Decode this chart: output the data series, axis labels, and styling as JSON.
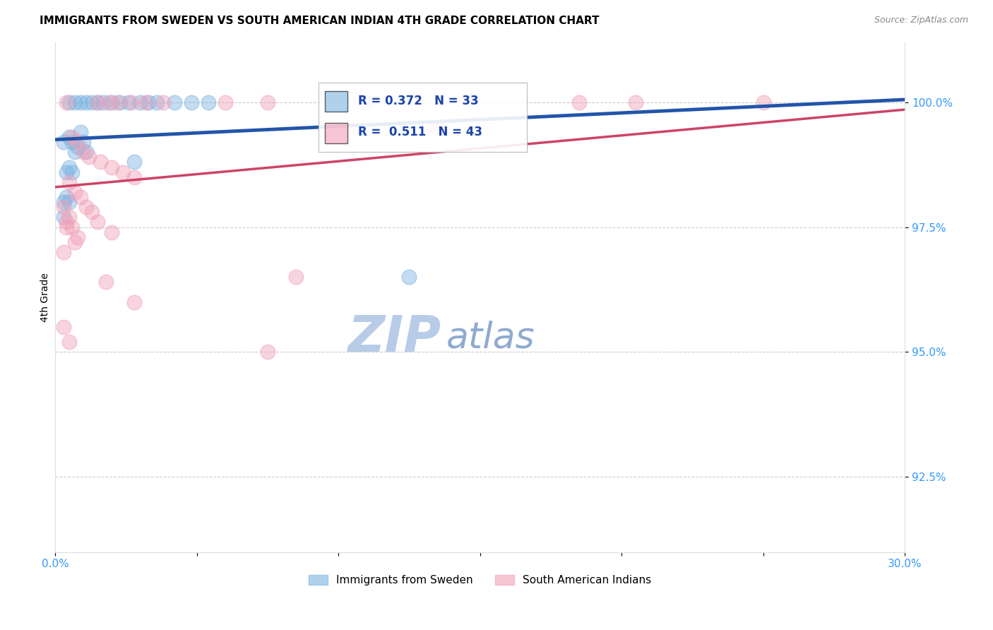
{
  "title": "IMMIGRANTS FROM SWEDEN VS SOUTH AMERICAN INDIAN 4TH GRADE CORRELATION CHART",
  "source": "Source: ZipAtlas.com",
  "ylabel": "4th Grade",
  "xlim": [
    0.0,
    30.0
  ],
  "ylim": [
    91.0,
    101.2
  ],
  "yticks": [
    92.5,
    95.0,
    97.5,
    100.0
  ],
  "ytick_labels": [
    "92.5%",
    "95.0%",
    "97.5%",
    "100.0%"
  ],
  "xticks": [
    0.0,
    5.0,
    10.0,
    15.0,
    20.0,
    25.0,
    30.0
  ],
  "xtick_labels": [
    "0.0%",
    "",
    "",
    "",
    "",
    "",
    "30.0%"
  ],
  "watermark_zip": "ZIP",
  "watermark_atlas": "atlas",
  "blue_scatter": [
    [
      0.5,
      100.0
    ],
    [
      0.7,
      100.0
    ],
    [
      0.9,
      100.0
    ],
    [
      1.1,
      100.0
    ],
    [
      1.3,
      100.0
    ],
    [
      1.5,
      100.0
    ],
    [
      1.7,
      100.0
    ],
    [
      2.0,
      100.0
    ],
    [
      2.3,
      100.0
    ],
    [
      2.6,
      100.0
    ],
    [
      3.0,
      100.0
    ],
    [
      3.3,
      100.0
    ],
    [
      3.6,
      100.0
    ],
    [
      4.2,
      100.0
    ],
    [
      4.8,
      100.0
    ],
    [
      5.4,
      100.0
    ],
    [
      0.3,
      99.2
    ],
    [
      0.5,
      99.3
    ],
    [
      0.6,
      99.2
    ],
    [
      0.7,
      99.0
    ],
    [
      0.8,
      99.1
    ],
    [
      0.9,
      99.4
    ],
    [
      1.0,
      99.2
    ],
    [
      1.1,
      99.0
    ],
    [
      0.4,
      98.6
    ],
    [
      0.5,
      98.7
    ],
    [
      0.6,
      98.6
    ],
    [
      0.3,
      98.0
    ],
    [
      0.4,
      98.1
    ],
    [
      0.5,
      98.0
    ],
    [
      0.3,
      97.7
    ],
    [
      2.8,
      98.8
    ],
    [
      12.5,
      96.5
    ]
  ],
  "pink_scatter": [
    [
      0.4,
      100.0
    ],
    [
      1.5,
      100.0
    ],
    [
      1.9,
      100.0
    ],
    [
      2.2,
      100.0
    ],
    [
      2.7,
      100.0
    ],
    [
      3.2,
      100.0
    ],
    [
      3.8,
      100.0
    ],
    [
      6.0,
      100.0
    ],
    [
      7.5,
      100.0
    ],
    [
      11.0,
      100.0
    ],
    [
      18.5,
      100.0
    ],
    [
      20.5,
      100.0
    ],
    [
      25.0,
      100.0
    ],
    [
      0.6,
      99.3
    ],
    [
      0.8,
      99.2
    ],
    [
      1.0,
      99.0
    ],
    [
      1.2,
      98.9
    ],
    [
      1.6,
      98.8
    ],
    [
      2.0,
      98.7
    ],
    [
      2.4,
      98.6
    ],
    [
      2.8,
      98.5
    ],
    [
      0.5,
      98.4
    ],
    [
      0.7,
      98.2
    ],
    [
      0.9,
      98.1
    ],
    [
      1.1,
      97.9
    ],
    [
      1.3,
      97.8
    ],
    [
      0.4,
      97.6
    ],
    [
      0.6,
      97.5
    ],
    [
      0.8,
      97.3
    ],
    [
      1.5,
      97.6
    ],
    [
      2.0,
      97.4
    ],
    [
      0.3,
      97.9
    ],
    [
      0.5,
      97.7
    ],
    [
      0.4,
      97.5
    ],
    [
      0.7,
      97.2
    ],
    [
      0.3,
      97.0
    ],
    [
      1.8,
      96.4
    ],
    [
      8.5,
      96.5
    ],
    [
      2.8,
      96.0
    ],
    [
      7.5,
      95.0
    ],
    [
      0.5,
      95.2
    ],
    [
      0.3,
      95.5
    ],
    [
      13.5,
      99.5
    ]
  ],
  "blue_line": {
    "x0": 0.0,
    "y0": 99.25,
    "x1": 30.0,
    "y1": 100.05
  },
  "pink_line": {
    "x0": 0.0,
    "y0": 98.3,
    "x1": 30.0,
    "y1": 99.85
  },
  "blue_color": "#7ab3e0",
  "pink_color": "#f0a0b8",
  "blue_line_color": "#2255aa",
  "pink_line_color": "#cc4466",
  "title_fontsize": 11,
  "source_fontsize": 9,
  "watermark_color_zip": "#b8cce8",
  "watermark_color_atlas": "#90aad0",
  "watermark_fontsize": 52
}
